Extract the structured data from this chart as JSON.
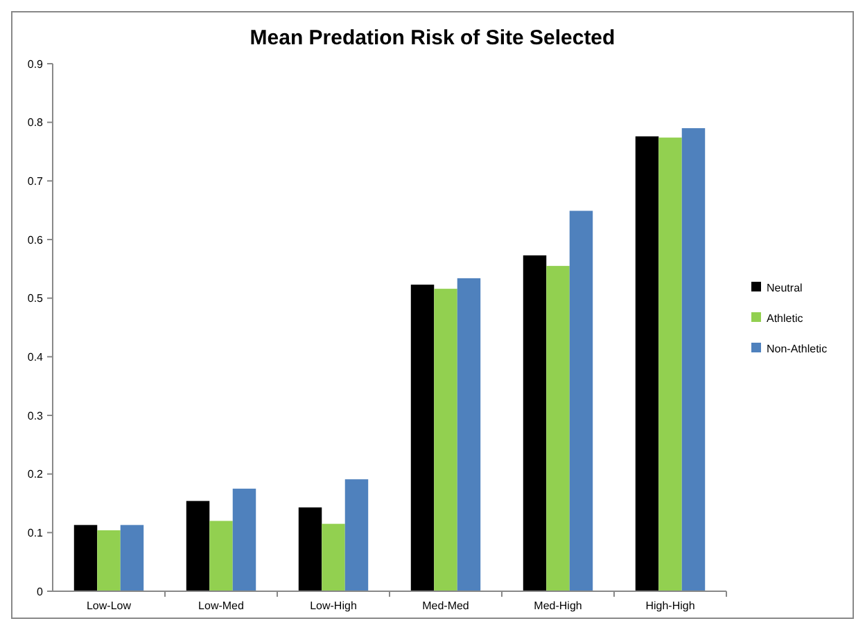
{
  "chart_data": {
    "type": "bar",
    "title": "Mean Predation Risk of Site Selected",
    "categories": [
      "Low-Low",
      "Low-Med",
      "Low-High",
      "Med-Med",
      "Med-High",
      "High-High"
    ],
    "series": [
      {
        "name": "Neutral",
        "color": "#000000",
        "values": [
          0.113,
          0.154,
          0.143,
          0.523,
          0.573,
          0.776
        ]
      },
      {
        "name": "Athletic",
        "color": "#92d050",
        "values": [
          0.104,
          0.12,
          0.115,
          0.516,
          0.555,
          0.774
        ]
      },
      {
        "name": "Non-Athletic",
        "color": "#4f81bd",
        "values": [
          0.113,
          0.175,
          0.191,
          0.534,
          0.649,
          0.79
        ]
      }
    ],
    "ylim": [
      0,
      0.9
    ],
    "yticks": [
      0,
      0.1,
      0.2,
      0.3,
      0.4,
      0.5,
      0.6,
      0.7,
      0.8,
      0.9
    ],
    "grid": false,
    "legend": "right"
  }
}
